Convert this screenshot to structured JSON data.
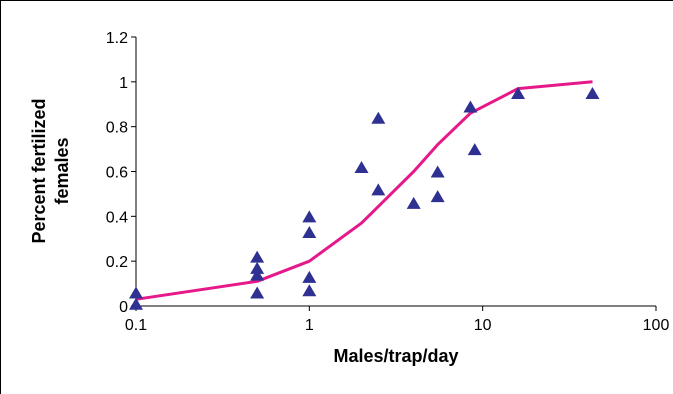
{
  "chart_data": {
    "type": "scatter",
    "title": "",
    "xlabel": "Males/trap/day",
    "ylabel": "Percent fertilized females",
    "ylabel_lines": [
      "Percent fertilized",
      "females"
    ],
    "x_scale": "log",
    "xlim": [
      0.1,
      100
    ],
    "ylim": [
      0,
      1.2
    ],
    "x_ticks": [
      {
        "value": 0.1,
        "label": "0.1"
      },
      {
        "value": 1,
        "label": "1"
      },
      {
        "value": 10,
        "label": "10"
      },
      {
        "value": 100,
        "label": "100"
      }
    ],
    "y_ticks": [
      {
        "value": 0,
        "label": "0"
      },
      {
        "value": 0.2,
        "label": "0.2"
      },
      {
        "value": 0.4,
        "label": "0.4"
      },
      {
        "value": 0.6,
        "label": "0.6"
      },
      {
        "value": 0.8,
        "label": "0.8"
      },
      {
        "value": 1,
        "label": "1"
      },
      {
        "value": 1.2,
        "label": "1.2"
      }
    ],
    "grid": false,
    "legend": "none",
    "series": [
      {
        "kind": "scatter",
        "marker": "triangle",
        "color": "#2e3192",
        "points": [
          {
            "x": 0.1,
            "y": 0.06
          },
          {
            "x": 0.1,
            "y": 0.01
          },
          {
            "x": 0.5,
            "y": 0.22
          },
          {
            "x": 0.5,
            "y": 0.17
          },
          {
            "x": 0.5,
            "y": 0.14
          },
          {
            "x": 0.5,
            "y": 0.06
          },
          {
            "x": 1,
            "y": 0.4
          },
          {
            "x": 1,
            "y": 0.33
          },
          {
            "x": 1,
            "y": 0.13
          },
          {
            "x": 1,
            "y": 0.07
          },
          {
            "x": 2,
            "y": 0.62
          },
          {
            "x": 2.5,
            "y": 0.84
          },
          {
            "x": 2.5,
            "y": 0.52
          },
          {
            "x": 4,
            "y": 0.46
          },
          {
            "x": 5.5,
            "y": 0.6
          },
          {
            "x": 5.5,
            "y": 0.49
          },
          {
            "x": 8.5,
            "y": 0.89
          },
          {
            "x": 9,
            "y": 0.7
          },
          {
            "x": 16,
            "y": 0.95
          },
          {
            "x": 43,
            "y": 0.95
          }
        ]
      },
      {
        "kind": "line",
        "color": "#e6198a",
        "points": [
          {
            "x": 0.1,
            "y": 0.03
          },
          {
            "x": 0.5,
            "y": 0.11
          },
          {
            "x": 1,
            "y": 0.2
          },
          {
            "x": 2,
            "y": 0.37
          },
          {
            "x": 4,
            "y": 0.6
          },
          {
            "x": 5.5,
            "y": 0.72
          },
          {
            "x": 8.5,
            "y": 0.86
          },
          {
            "x": 16,
            "y": 0.97
          },
          {
            "x": 43,
            "y": 1.0
          }
        ]
      }
    ]
  }
}
